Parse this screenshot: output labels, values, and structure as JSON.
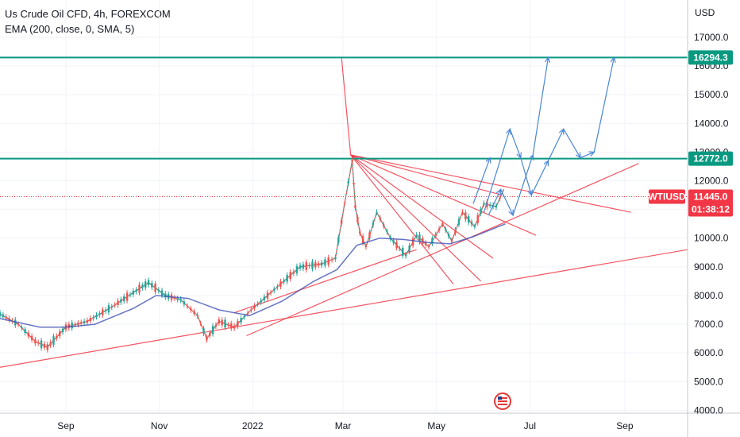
{
  "header": {
    "symbol_line": "Us Crude Oil CFD, 4h, FOREXCOM",
    "indicator_line": "EMA (200, close, 0, SMA, 5)"
  },
  "chart_data": {
    "type": "line",
    "currency_label": "USD",
    "y_ticks": [
      4000,
      5000,
      6000,
      7000,
      8000,
      9000,
      10000,
      11000,
      12000,
      13000,
      14000,
      15000,
      16000,
      17000
    ],
    "y_tick_labels": [
      "4000.0",
      "5000.0",
      "6000.0",
      "7000.0",
      "8000.0",
      "9000.0",
      "10000.0",
      "11000.0",
      "12000.0",
      "13000.0",
      "14000.0",
      "15000.0",
      "16000.0",
      "17000.0"
    ],
    "ylim": [
      3900,
      18300
    ],
    "x_ticks": [
      "2021-09-01",
      "2021-11-01",
      "2022-01-01",
      "2022-03-01",
      "2022-05-01",
      "2022-07-01",
      "2022-09-01"
    ],
    "x_tick_labels": [
      "Sep",
      "Nov",
      "2022",
      "Mar",
      "May",
      "Jul",
      "Sep"
    ],
    "xlim": [
      "2021-07-20",
      "2022-10-12"
    ],
    "grid": true,
    "series": [
      {
        "kind": "price",
        "color": "#26a69a",
        "x": [
          "2021-07-20",
          "2021-08-01",
          "2021-08-12",
          "2021-08-20",
          "2021-09-01",
          "2021-09-15",
          "2021-10-01",
          "2021-10-15",
          "2021-10-25",
          "2021-11-05",
          "2021-11-15",
          "2021-11-26",
          "2021-12-02",
          "2021-12-10",
          "2021-12-20",
          "2021-12-31",
          "2022-01-15",
          "2022-02-01",
          "2022-02-15",
          "2022-02-24",
          "2022-03-02",
          "2022-03-07",
          "2022-03-09",
          "2022-03-12",
          "2022-03-16",
          "2022-03-23",
          "2022-04-01",
          "2022-04-11",
          "2022-04-18",
          "2022-04-26",
          "2022-05-05",
          "2022-05-11",
          "2022-05-18",
          "2022-05-26",
          "2022-06-01",
          "2022-06-09",
          "2022-06-14"
        ],
        "y": [
          7350,
          7000,
          6400,
          6200,
          6900,
          7100,
          7600,
          8100,
          8450,
          8000,
          7850,
          7300,
          6500,
          7100,
          6900,
          7500,
          8200,
          9000,
          9100,
          9300,
          11200,
          12700,
          11100,
          10200,
          9700,
          10900,
          10000,
          9400,
          10100,
          9700,
          10500,
          9900,
          10900,
          10400,
          11200,
          11100,
          11700
        ]
      },
      {
        "kind": "ema",
        "name": "EMA",
        "color": "#3f51b5",
        "x": [
          "2021-07-20",
          "2021-08-15",
          "2021-09-01",
          "2021-09-20",
          "2021-10-15",
          "2021-10-30",
          "2021-11-20",
          "2021-12-10",
          "2021-12-30",
          "2022-01-20",
          "2022-02-10",
          "2022-02-25",
          "2022-03-10",
          "2022-03-25",
          "2022-04-10",
          "2022-04-25",
          "2022-05-10",
          "2022-05-25",
          "2022-06-15"
        ],
        "y": [
          7200,
          6900,
          6900,
          7000,
          7550,
          8000,
          7900,
          7500,
          7300,
          7800,
          8500,
          8900,
          9750,
          10000,
          9950,
          9850,
          9800,
          10050,
          10500
        ]
      }
    ],
    "horizontal_levels": [
      {
        "value": 16294.3,
        "label": "16294.3",
        "color": "#089981"
      },
      {
        "value": 12772.0,
        "label": "12772.0",
        "color": "#089981"
      }
    ],
    "last_price": {
      "value": 11445.0,
      "label": "11445.0",
      "symbol": "WTIUSD",
      "countdown": "01:38:12",
      "color": "#f23645"
    },
    "trend_lines": [
      {
        "x1": "2021-07-20",
        "y1": 5500,
        "x2": "2022-10-12",
        "y2": 9600
      },
      {
        "x1": "2021-12-28",
        "y1": 6600,
        "x2": "2022-09-10",
        "y2": 12600
      },
      {
        "x1": "2021-12-20",
        "y1": 7400,
        "x2": "2022-04-18",
        "y2": 9600
      },
      {
        "x1": "2022-02-28",
        "y1": 16300,
        "x2": "2022-03-06",
        "y2": 12900
      },
      {
        "x1": "2022-03-06",
        "y1": 12900,
        "x2": "2022-09-05",
        "y2": 10900
      },
      {
        "x1": "2022-03-06",
        "y1": 12900,
        "x2": "2022-07-05",
        "y2": 10100
      },
      {
        "x1": "2022-03-06",
        "y1": 12900,
        "x2": "2022-06-07",
        "y2": 9300
      },
      {
        "x1": "2022-03-06",
        "y1": 12900,
        "x2": "2022-05-30",
        "y2": 8500
      },
      {
        "x1": "2022-03-06",
        "y1": 12900,
        "x2": "2022-05-12",
        "y2": 8400
      },
      {
        "x1": "2022-03-06",
        "y1": 12900,
        "x2": "2022-06-13",
        "y2": 11500
      }
    ],
    "projection_paths": [
      {
        "x": [
          "2022-06-01",
          "2022-06-18",
          "2022-06-25",
          "2022-07-02",
          "2022-07-13",
          "2022-07-23",
          "2022-08-03",
          "2022-08-12",
          "2022-08-25"
        ],
        "y": [
          10900,
          13800,
          12800,
          11500,
          12700,
          13800,
          12800,
          13000,
          16300
        ]
      },
      {
        "x": [
          "2022-06-04",
          "2022-06-12",
          "2022-06-20",
          "2022-07-03",
          "2022-07-13"
        ],
        "y": [
          10800,
          11700,
          10800,
          12900,
          16300
        ]
      },
      {
        "x": [
          "2022-05-25",
          "2022-06-05"
        ],
        "y": [
          11200,
          12800
        ]
      }
    ]
  }
}
